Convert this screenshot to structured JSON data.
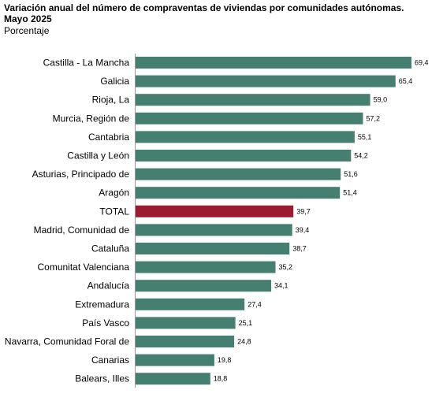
{
  "title_line1": "Variación anual del número de compraventas de viviendas por comunidades autónomas.",
  "title_line2": "Mayo 2025",
  "subtitle": "Porcentaje",
  "colors": {
    "default_bar": "#447f72",
    "highlight_bar": "#9b1b31",
    "axis": "#999999"
  },
  "chart_data": {
    "type": "bar",
    "orientation": "horizontal",
    "categories": [
      "Castilla - La Mancha",
      "Galicia",
      "Rioja, La",
      "Murcia, Región de",
      "Cantabria",
      "Castilla y León",
      "Asturias, Principado de",
      "Aragón",
      "TOTAL",
      "Madrid, Comunidad de",
      "Cataluña",
      "Comunitat Valenciana",
      "Andalucía",
      "Extremadura",
      "País Vasco",
      "Navarra, Comunidad Foral de",
      "Canarias",
      "Balears, Illes"
    ],
    "values": [
      69.4,
      65.4,
      59.0,
      57.2,
      55.1,
      54.2,
      51.6,
      51.4,
      39.7,
      39.4,
      38.7,
      35.2,
      34.1,
      27.4,
      25.1,
      24.8,
      19.8,
      18.8
    ],
    "value_labels": [
      "69,4",
      "65,4",
      "59,0",
      "57,2",
      "55,1",
      "54,2",
      "51,6",
      "51,4",
      "39,7",
      "39,4",
      "38,7",
      "35,2",
      "34,1",
      "27,4",
      "25,1",
      "24,8",
      "19,8",
      "18,8"
    ],
    "highlight": "TOTAL",
    "xlim": [
      0,
      70
    ],
    "grid": false,
    "legend": "none"
  }
}
